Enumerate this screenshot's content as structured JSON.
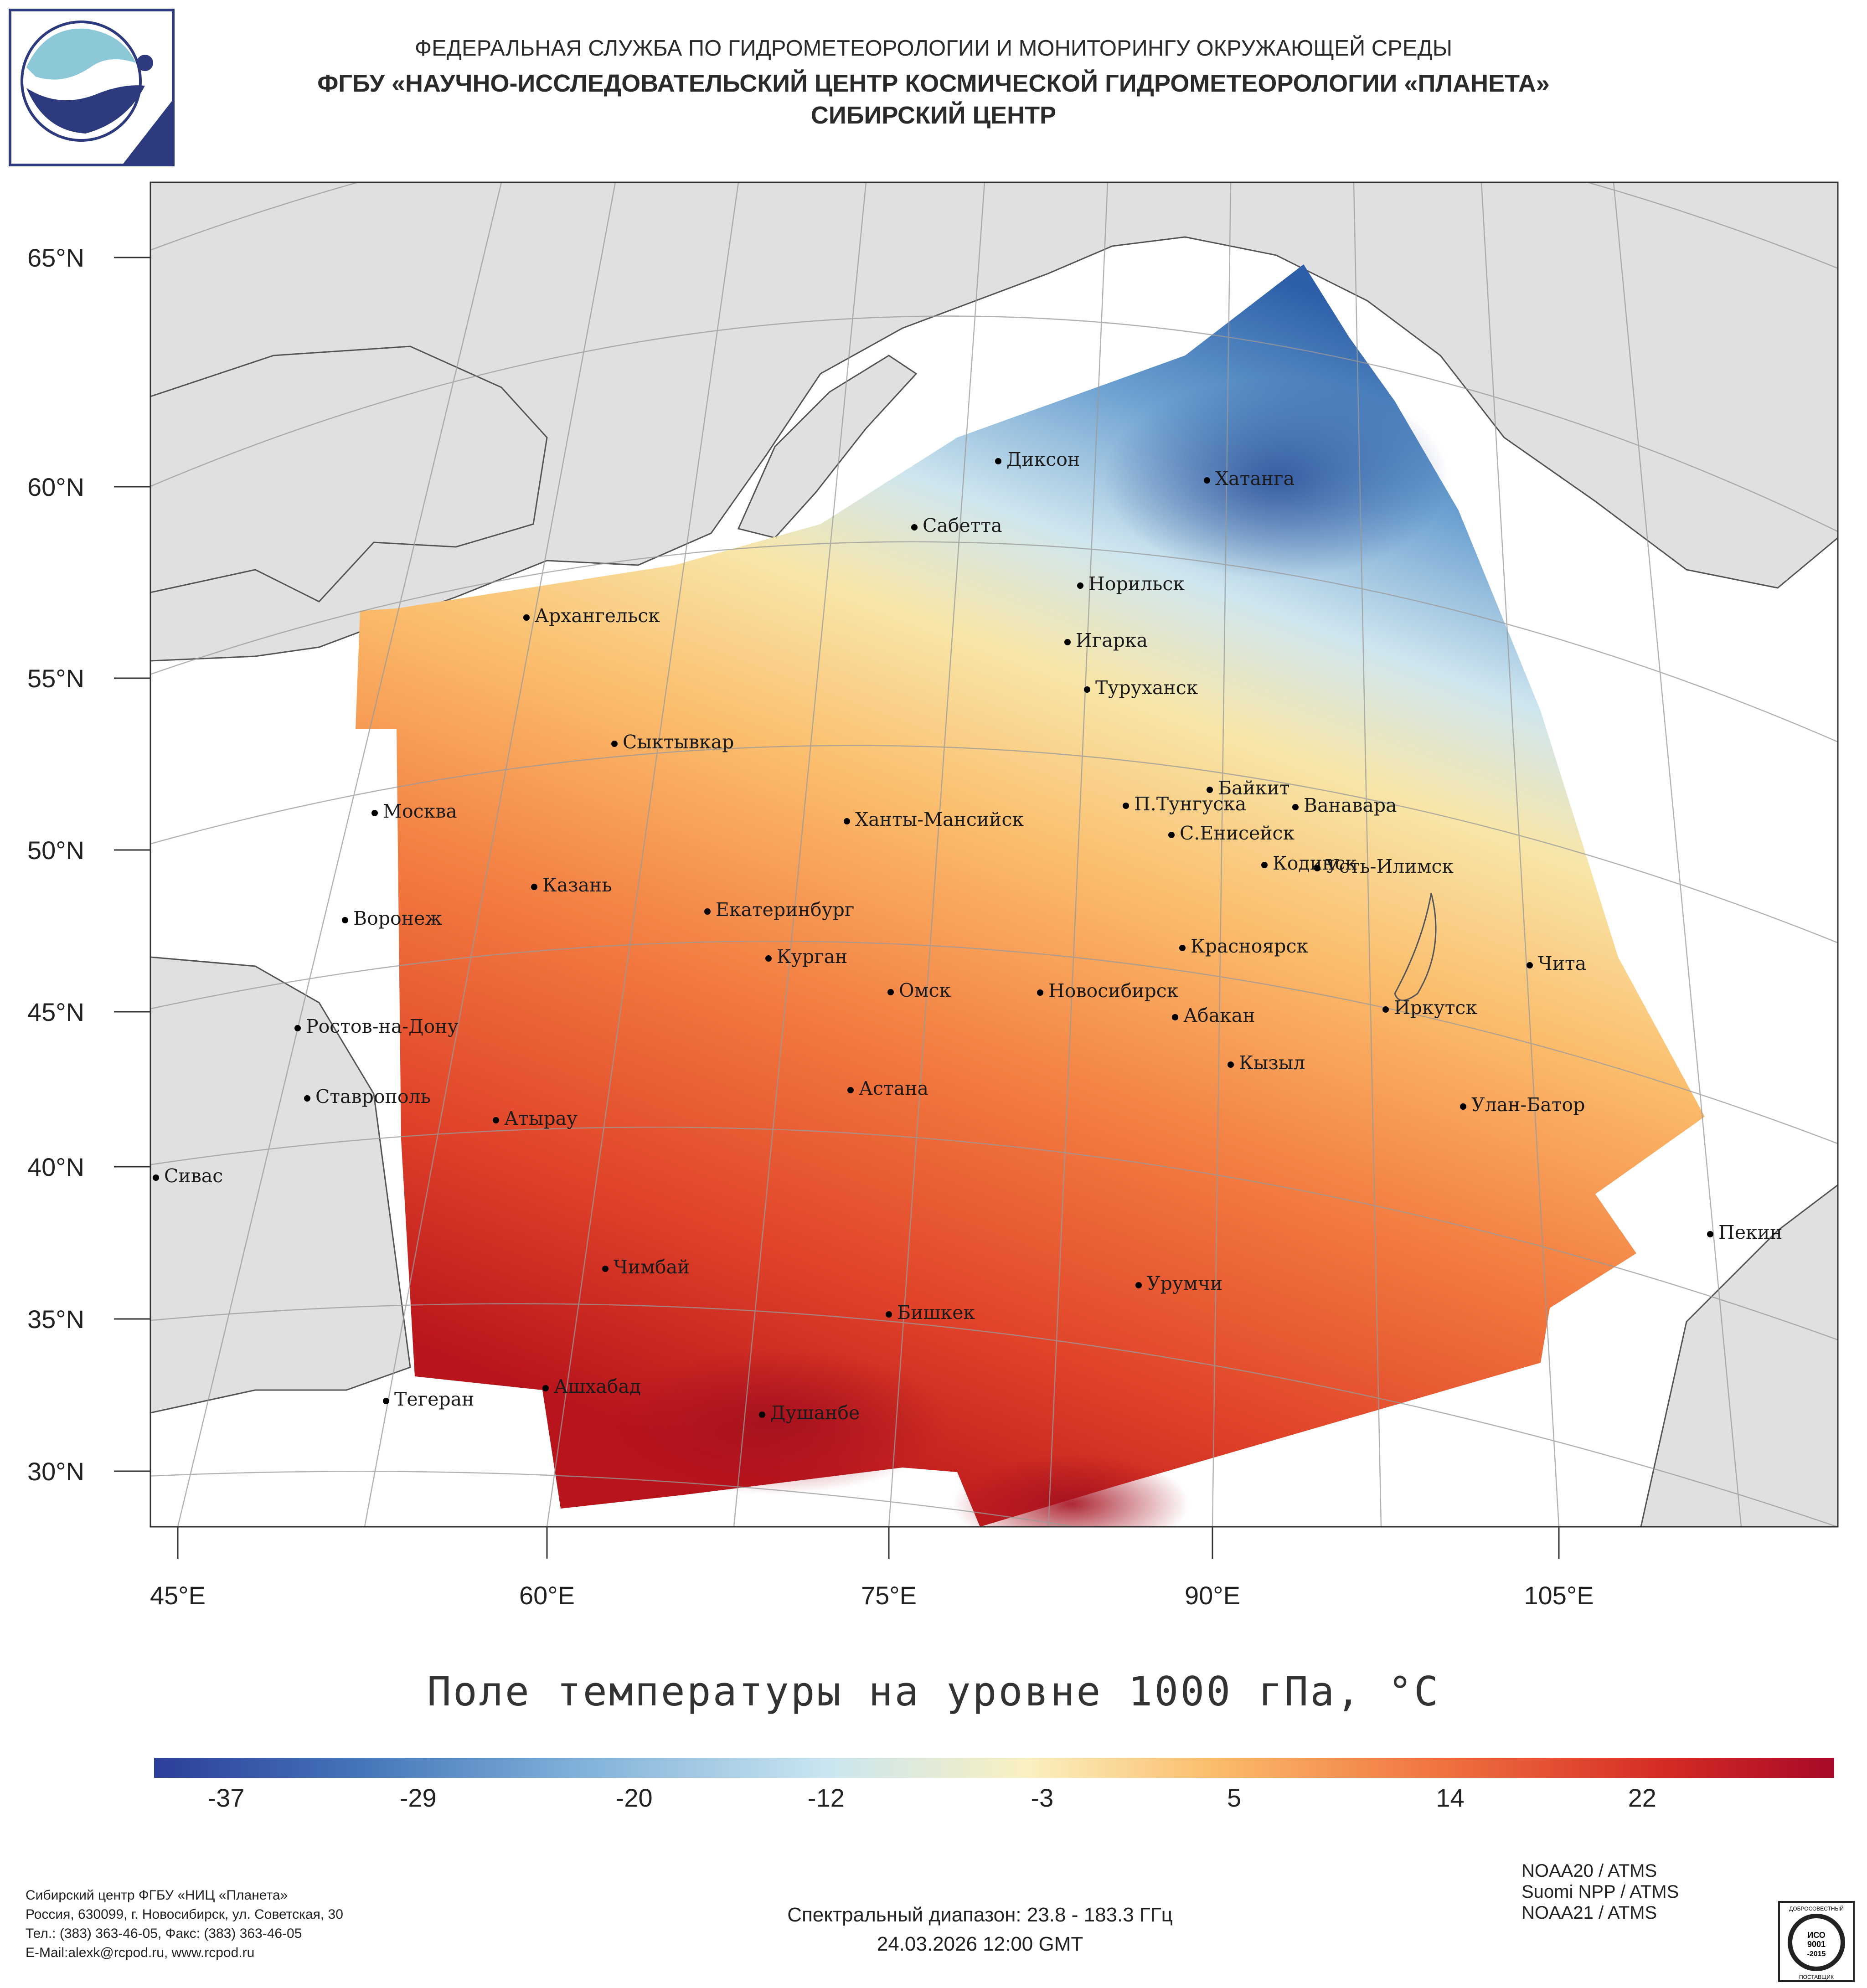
{
  "header": {
    "line1": "ФЕДЕРАЛЬНАЯ СЛУЖБА ПО ГИДРОМЕТЕОРОЛОГИИ И МОНИТОРИНГУ ОКРУЖАЮЩЕЙ СРЕДЫ",
    "line2": "ФГБУ «НАУЧНО-ИССЛЕДОВАТЕЛЬСКИЙ ЦЕНТР КОСМИЧЕСКОЙ ГИДРОМЕТЕОРОЛОГИИ «ПЛАНЕТА»",
    "line3": "СИБИРСКИЙ ЦЕНТР"
  },
  "map": {
    "lat_labels": [
      "65°N",
      "60°N",
      "55°N",
      "50°N",
      "45°N",
      "40°N",
      "35°N",
      "30°N"
    ],
    "lon_labels": [
      "45°E",
      "60°E",
      "75°E",
      "90°E",
      "105°E"
    ],
    "cities": [
      "Диксон",
      "Хатанга",
      "Сабетта",
      "Норильск",
      "Архангельск",
      "Игарка",
      "Туруханск",
      "Сыктывкар",
      "Байкит",
      "Москва",
      "П.Тунгуска",
      "Ванавара",
      "Ханты-Мансийск",
      "С.Енисейск",
      "Казань",
      "Кодинск",
      "Усть-Илимск",
      "Екатеринбург",
      "Воронеж",
      "Красноярск",
      "Курган",
      "Чита",
      "Омск",
      "Новосибирск",
      "Ростов-на-Дону",
      "Иркутск",
      "Абакан",
      "Кызыл",
      "Ставрополь",
      "Астана",
      "Улан-Батор",
      "Атырау",
      "Сивас",
      "Пекин",
      "Чимбай",
      "Урумчи",
      "Бишкек",
      "Ашхабад",
      "Тегеран",
      "Душанбе"
    ],
    "colors": {
      "land": "#e0e0e0",
      "ocean": "#ffffff",
      "graticule": "#b8b8b8",
      "coast": "#555555"
    }
  },
  "title": "Поле температуры на уровне 1000 гПа, °С",
  "colorbar": {
    "ticks": [
      "-37",
      "-29",
      "-20",
      "-12",
      "-3",
      "5",
      "14",
      "22"
    ],
    "tick_values": [
      -37,
      -29,
      -20,
      -12,
      -3,
      5,
      14,
      22
    ],
    "range": [
      -40,
      30
    ],
    "colors": [
      "#2c3f99",
      "#4473b8",
      "#7fb0d9",
      "#c9e5f0",
      "#faf0c0",
      "#fbbd6c",
      "#f0703f",
      "#d42b24",
      "#a70a28"
    ]
  },
  "footer": {
    "org_lines": [
      "Сибирский центр ФГБУ «НИЦ «Планета»",
      "Россия, 630099, г. Новосибирск, ул. Советская, 30",
      "Тел.: (383) 363-46-05, Факс: (383) 363-46-05",
      "E-Mail:alexk@rcpod.ru, www.rcpod.ru"
    ],
    "spectral": "Спектральный диапазон: 23.8 - 183.3 ГГц",
    "datetime": "24.03.2026 12:00 GMT",
    "instruments": [
      "NOAA20 / ATMS",
      "Suomi NPP / ATMS",
      "NOAA21 / ATMS"
    ],
    "iso_text": [
      "ДОБРОСОВЕСТНЫЙ",
      "ИСО",
      "9001",
      "-2015",
      "ПОСТАВЩИК"
    ]
  }
}
